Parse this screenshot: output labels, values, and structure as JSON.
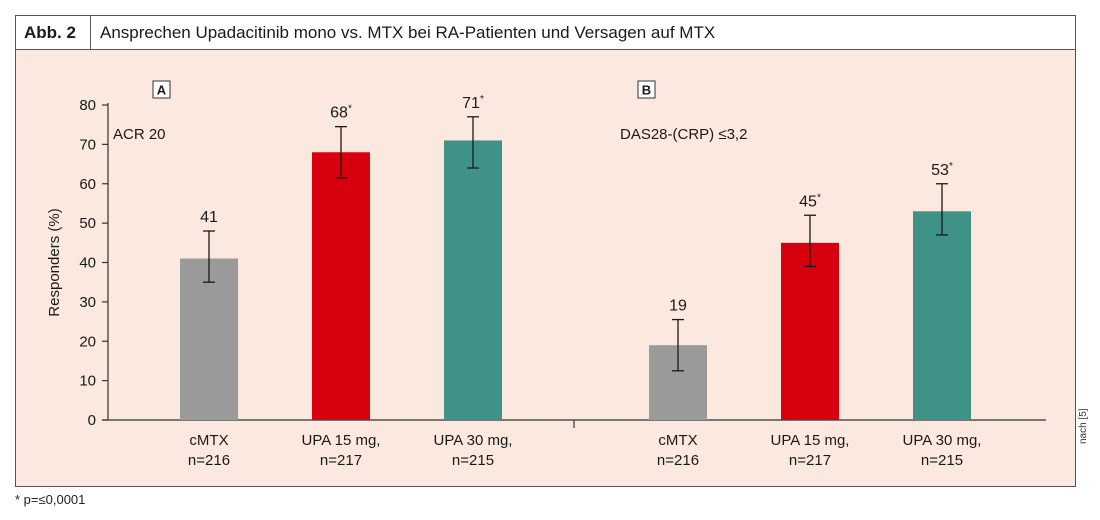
{
  "figure": {
    "label": "Abb. 2",
    "title": "Ansprechen Upadacitinib mono vs. MTX bei RA-Patienten und Versagen auf MTX",
    "footnote": "* p=≤0,0001",
    "source": "nach [5]"
  },
  "chart_data": {
    "type": "bar",
    "ylabel": "Responders (%)",
    "ylim": [
      0,
      80
    ],
    "yticks": [
      0,
      10,
      20,
      30,
      40,
      50,
      60,
      70,
      80
    ],
    "grid": false,
    "panels": [
      {
        "panel": "A",
        "endpoint": "ACR 20",
        "bars": [
          {
            "category": "cMTX",
            "n": "n=216",
            "value": 41,
            "label": "41",
            "significant": false,
            "ci": [
              35,
              48
            ],
            "color": "#9a9a9a"
          },
          {
            "category": "UPA 15 mg,",
            "n": "n=217",
            "value": 68,
            "label": "68",
            "significant": true,
            "ci": [
              61.5,
              74.5
            ],
            "color": "#d7000f"
          },
          {
            "category": "UPA 30 mg,",
            "n": "n=215",
            "value": 71,
            "label": "71",
            "significant": true,
            "ci": [
              64,
              77
            ],
            "color": "#3e9288"
          }
        ]
      },
      {
        "panel": "B",
        "endpoint": "DAS28-(CRP) ≤3,2",
        "bars": [
          {
            "category": "cMTX",
            "n": "n=216",
            "value": 19,
            "label": "19",
            "significant": false,
            "ci": [
              12.5,
              25.5
            ],
            "color": "#9a9a9a"
          },
          {
            "category": "UPA 15 mg,",
            "n": "n=217",
            "value": 45,
            "label": "45",
            "significant": true,
            "ci": [
              39,
              52
            ],
            "color": "#d7000f"
          },
          {
            "category": "UPA 30 mg,",
            "n": "n=215",
            "value": 53,
            "label": "53",
            "significant": true,
            "ci": [
              47,
              60
            ],
            "color": "#3e9288"
          }
        ]
      }
    ]
  }
}
